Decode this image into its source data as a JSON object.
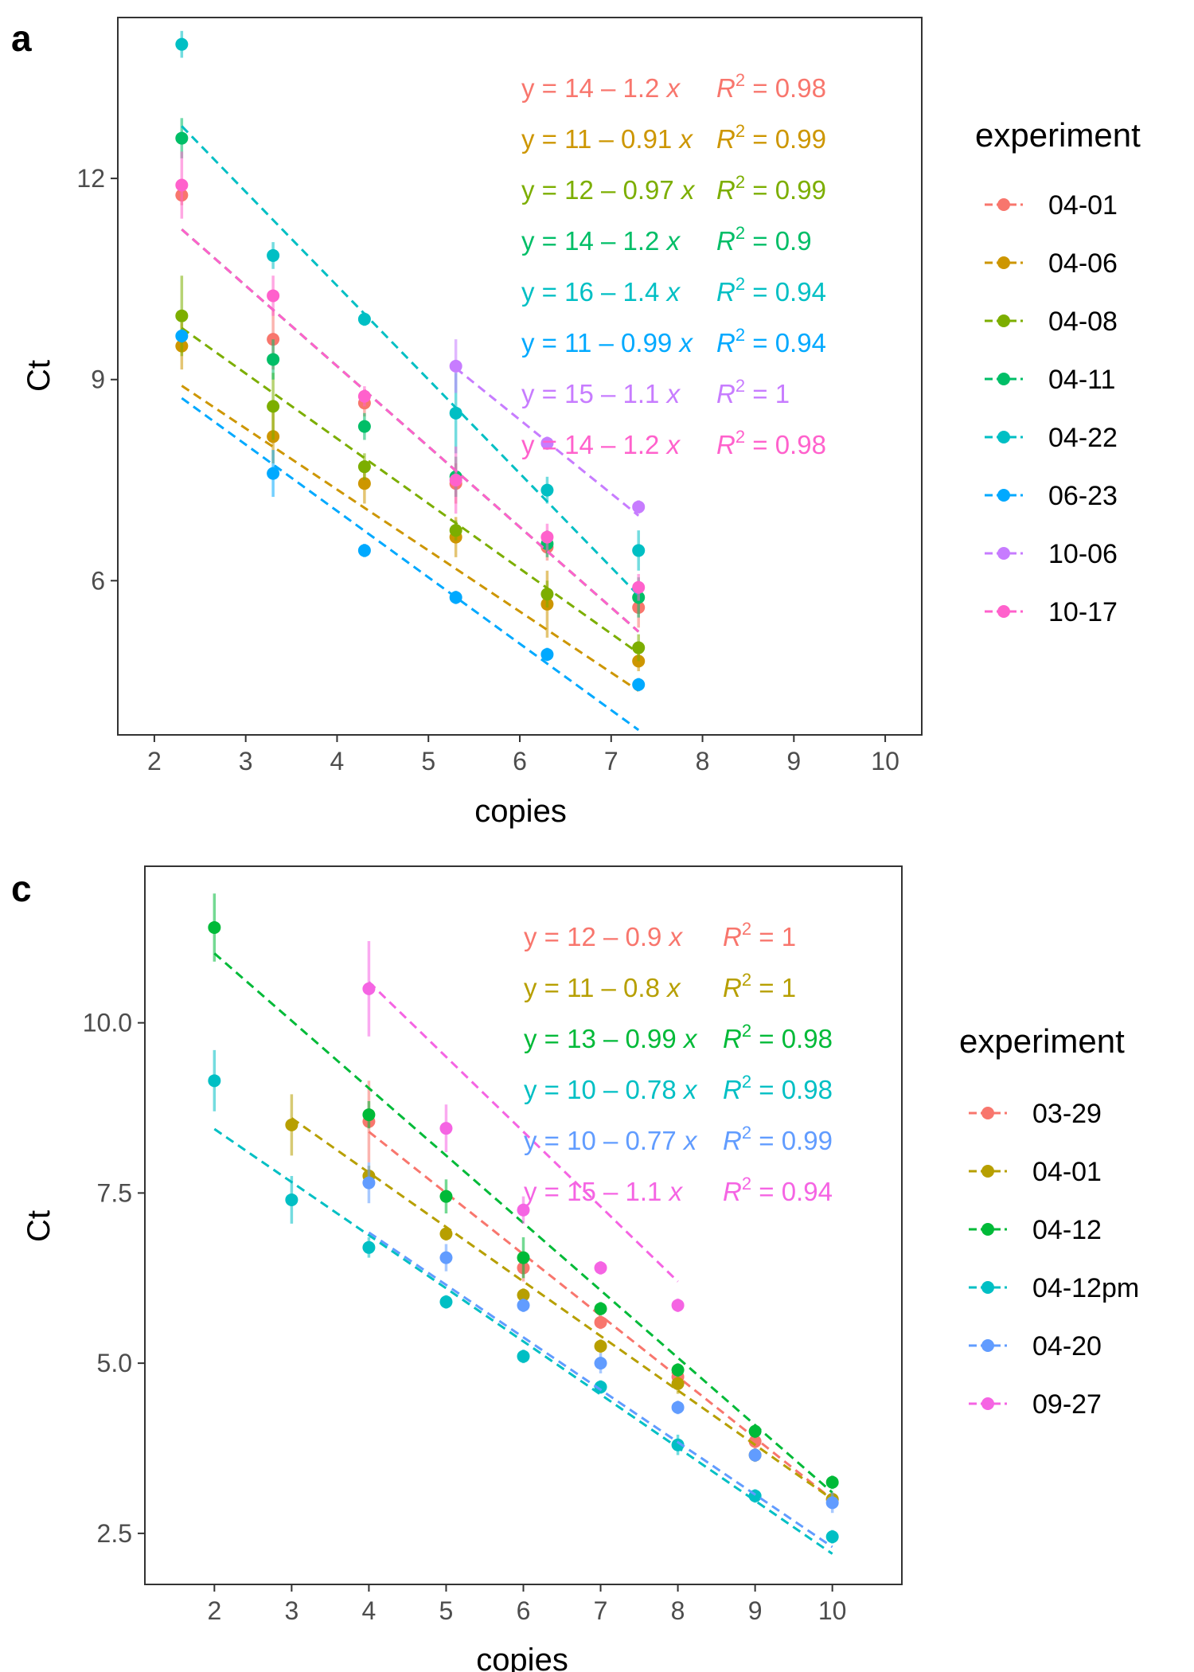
{
  "chart_data": [
    {
      "type": "scatter",
      "panel_label": "a",
      "xlabel": "copies",
      "ylabel": "Ct",
      "xlim": [
        1.6,
        10.4
      ],
      "ylim": [
        3.7,
        14.4
      ],
      "xticks": [
        2,
        3,
        4,
        5,
        6,
        7,
        8,
        9,
        10
      ],
      "yticks": [
        6,
        9,
        12
      ],
      "legend": {
        "title": "experiment",
        "position": "right"
      },
      "grid": false,
      "series": [
        {
          "name": "04-01",
          "color": "#F8766D",
          "x": [
            2.3,
            3.3,
            4.3,
            5.3,
            6.3,
            7.3
          ],
          "y": [
            11.75,
            9.6,
            8.65,
            7.45,
            6.5,
            5.6
          ],
          "err": [
            0.15,
            0.45,
            0.2,
            0.3,
            0.2,
            0.3
          ],
          "fit": {
            "intercept": 14,
            "slope": -1.2
          },
          "equation": {
            "lhs": "y = 14 – 1.2 ",
            "var": "x",
            "r2_label": "R",
            "r2_value": " = 0.98"
          }
        },
        {
          "name": "04-06",
          "color": "#CD9600",
          "x": [
            2.3,
            3.3,
            4.3,
            5.3,
            6.3,
            7.3
          ],
          "y": [
            9.5,
            8.15,
            7.45,
            6.65,
            5.65,
            4.8
          ],
          "err": [
            0.35,
            0.4,
            0.3,
            0.3,
            0.5,
            0.15
          ],
          "fit": {
            "intercept": 11,
            "slope": -0.91
          },
          "equation": {
            "lhs": "y = 11 – 0.91 ",
            "var": "x",
            "r2_label": "R",
            "r2_value": " = 0.99"
          }
        },
        {
          "name": "04-08",
          "color": "#7CAE00",
          "x": [
            2.3,
            3.3,
            4.3,
            5.3,
            6.3,
            7.3
          ],
          "y": [
            9.95,
            8.6,
            7.7,
            6.75,
            5.8,
            5.0
          ],
          "err": [
            0.6,
            0.5,
            0.2,
            0.15,
            0.2,
            0.2
          ],
          "fit": {
            "intercept": 12,
            "slope": -0.97
          },
          "equation": {
            "lhs": "y = 12 – 0.97 ",
            "var": "x",
            "r2_label": "R",
            "r2_value": " = 0.99"
          }
        },
        {
          "name": "04-11",
          "color": "#00BE67",
          "x": [
            2.3,
            3.3,
            4.3,
            5.3,
            6.3,
            7.3
          ],
          "y": [
            12.6,
            9.3,
            8.3,
            7.55,
            6.55,
            5.75
          ],
          "err": [
            0.3,
            0.3,
            0.2,
            0.3,
            0.2,
            0.3
          ],
          "fit": {
            "intercept": 14,
            "slope": -1.2
          },
          "equation": {
            "lhs": "y = 14 – 1.2 ",
            "var": "x",
            "r2_label": "R",
            "r2_value": " = 0.9"
          }
        },
        {
          "name": "04-22",
          "color": "#00BFC4",
          "x": [
            2.3,
            3.3,
            4.3,
            5.3,
            6.3,
            7.3
          ],
          "y": [
            14.0,
            10.85,
            9.9,
            8.5,
            7.35,
            6.45
          ],
          "err": [
            0.2,
            0.2,
            0.1,
            0.6,
            0.2,
            0.3
          ],
          "fit": {
            "intercept": 16,
            "slope": -1.4
          },
          "equation": {
            "lhs": "y = 16 – 1.4 ",
            "var": "x",
            "r2_label": "R",
            "r2_value": " = 0.94"
          }
        },
        {
          "name": "06-23",
          "color": "#00A9FF",
          "x": [
            2.3,
            3.3,
            4.3,
            5.3,
            6.3,
            7.3
          ],
          "y": [
            9.65,
            7.6,
            6.45,
            5.75,
            4.9,
            4.45
          ],
          "err": [
            0.1,
            0.35,
            0.1,
            0.1,
            0.1,
            0.1
          ],
          "fit": {
            "intercept": 11,
            "slope": -0.99
          },
          "equation": {
            "lhs": "y = 11 – 0.99 ",
            "var": "x",
            "r2_label": "R",
            "r2_value": " = 0.94"
          }
        },
        {
          "name": "10-06",
          "color": "#C77CFF",
          "x": [
            5.3,
            6.3,
            7.3
          ],
          "y": [
            9.2,
            8.05,
            7.1
          ],
          "err": [
            0.4,
            0.1,
            0.1
          ],
          "fit": {
            "intercept": 15,
            "slope": -1.1
          },
          "equation": {
            "lhs": "y = 15 – 1.1 ",
            "var": "x",
            "r2_label": "R",
            "r2_value": " = 1"
          }
        },
        {
          "name": "10-17",
          "color": "#FF61CC",
          "x": [
            2.3,
            3.3,
            4.3,
            5.3,
            6.3,
            7.3
          ],
          "y": [
            11.9,
            10.25,
            8.75,
            7.5,
            6.65,
            5.9
          ],
          "err": [
            0.5,
            0.3,
            0.15,
            0.5,
            0.2,
            0.2
          ],
          "fit": {
            "intercept": 14,
            "slope": -1.2
          },
          "equation": {
            "lhs": "y = 14 – 1.2 ",
            "var": "x",
            "r2_label": "R",
            "r2_value": " = 0.98"
          }
        }
      ]
    },
    {
      "type": "scatter",
      "panel_label": "c",
      "xlabel": "copies",
      "ylabel": "Ct",
      "xlim": [
        1.1,
        10.9
      ],
      "ylim": [
        1.75,
        12.3
      ],
      "xticks": [
        2,
        3,
        4,
        5,
        6,
        7,
        8,
        9,
        10
      ],
      "yticks": [
        2.5,
        5.0,
        7.5,
        10.0
      ],
      "ytick_labels": [
        "2.5",
        "5.0",
        "7.5",
        "10.0"
      ],
      "legend": {
        "title": "experiment",
        "position": "right"
      },
      "grid": false,
      "series": [
        {
          "name": "03-29",
          "color": "#F8766D",
          "x": [
            4,
            6,
            7,
            8,
            9,
            10
          ],
          "y": [
            8.55,
            6.4,
            5.6,
            4.8,
            3.85,
            3.0
          ],
          "err": [
            0.6,
            0.2,
            0.1,
            0.15,
            0.1,
            0.1
          ],
          "fit": {
            "intercept": 12,
            "slope": -0.9
          },
          "equation": {
            "lhs": "y = 12 – 0.9 ",
            "var": "x",
            "r2_label": "R",
            "r2_value": " = 1"
          }
        },
        {
          "name": "04-01",
          "color": "#B79F00",
          "x": [
            3,
            4,
            5,
            6,
            7,
            8,
            9,
            10
          ],
          "y": [
            8.5,
            7.75,
            6.9,
            6.0,
            5.25,
            4.7,
            3.65,
            3.0
          ],
          "err": [
            0.45,
            0.15,
            0.1,
            0.1,
            0.1,
            0.15,
            0.1,
            0.1
          ],
          "fit": {
            "intercept": 11,
            "slope": -0.8
          },
          "equation": {
            "lhs": "y = 11 – 0.8 ",
            "var": "x",
            "r2_label": "R",
            "r2_value": " = 1"
          }
        },
        {
          "name": "04-12",
          "color": "#00BA38",
          "x": [
            2,
            4,
            5,
            6,
            7,
            8,
            9,
            10
          ],
          "y": [
            11.4,
            8.65,
            7.45,
            6.55,
            5.8,
            4.9,
            4.0,
            3.25
          ],
          "err": [
            0.5,
            0.2,
            0.25,
            0.3,
            0.1,
            0.1,
            0.1,
            0.1
          ],
          "fit": {
            "intercept": 13,
            "slope": -0.99
          },
          "equation": {
            "lhs": "y = 13 – 0.99 ",
            "var": "x",
            "r2_label": "R",
            "r2_value": " = 0.98"
          }
        },
        {
          "name": "04-12pm",
          "color": "#00BFC4",
          "x": [
            2,
            3,
            4,
            5,
            6,
            7,
            8,
            9,
            10
          ],
          "y": [
            9.15,
            7.4,
            6.7,
            5.9,
            5.1,
            4.65,
            3.8,
            3.05,
            2.45
          ],
          "err": [
            0.45,
            0.35,
            0.15,
            0.1,
            0.1,
            0.1,
            0.15,
            0.1,
            0.1
          ],
          "fit": {
            "intercept": 10,
            "slope": -0.78
          },
          "equation": {
            "lhs": "y = 10 – 0.78 ",
            "var": "x",
            "r2_label": "R",
            "r2_value": " = 0.98"
          }
        },
        {
          "name": "04-20",
          "color": "#619CFF",
          "x": [
            4,
            5,
            6,
            7,
            8,
            9,
            10
          ],
          "y": [
            7.65,
            6.55,
            5.85,
            5.0,
            4.35,
            3.65,
            2.95
          ],
          "err": [
            0.3,
            0.2,
            0.1,
            0.15,
            0.1,
            0.1,
            0.15
          ],
          "fit": {
            "intercept": 10,
            "slope": -0.77
          },
          "equation": {
            "lhs": "y = 10 – 0.77 ",
            "var": "x",
            "r2_label": "R",
            "r2_value": " = 0.99"
          }
        },
        {
          "name": "09-27",
          "color": "#F564E3",
          "x": [
            4,
            5,
            6,
            7,
            8
          ],
          "y": [
            10.5,
            8.45,
            7.25,
            6.4,
            5.85
          ],
          "err": [
            0.7,
            0.35,
            0.2,
            0.1,
            0.1
          ],
          "fit": {
            "intercept": 15,
            "slope": -1.1
          },
          "equation": {
            "lhs": "y = 15 – 1.1 ",
            "var": "x",
            "r2_label": "R",
            "r2_value": " = 0.94"
          }
        }
      ]
    }
  ]
}
